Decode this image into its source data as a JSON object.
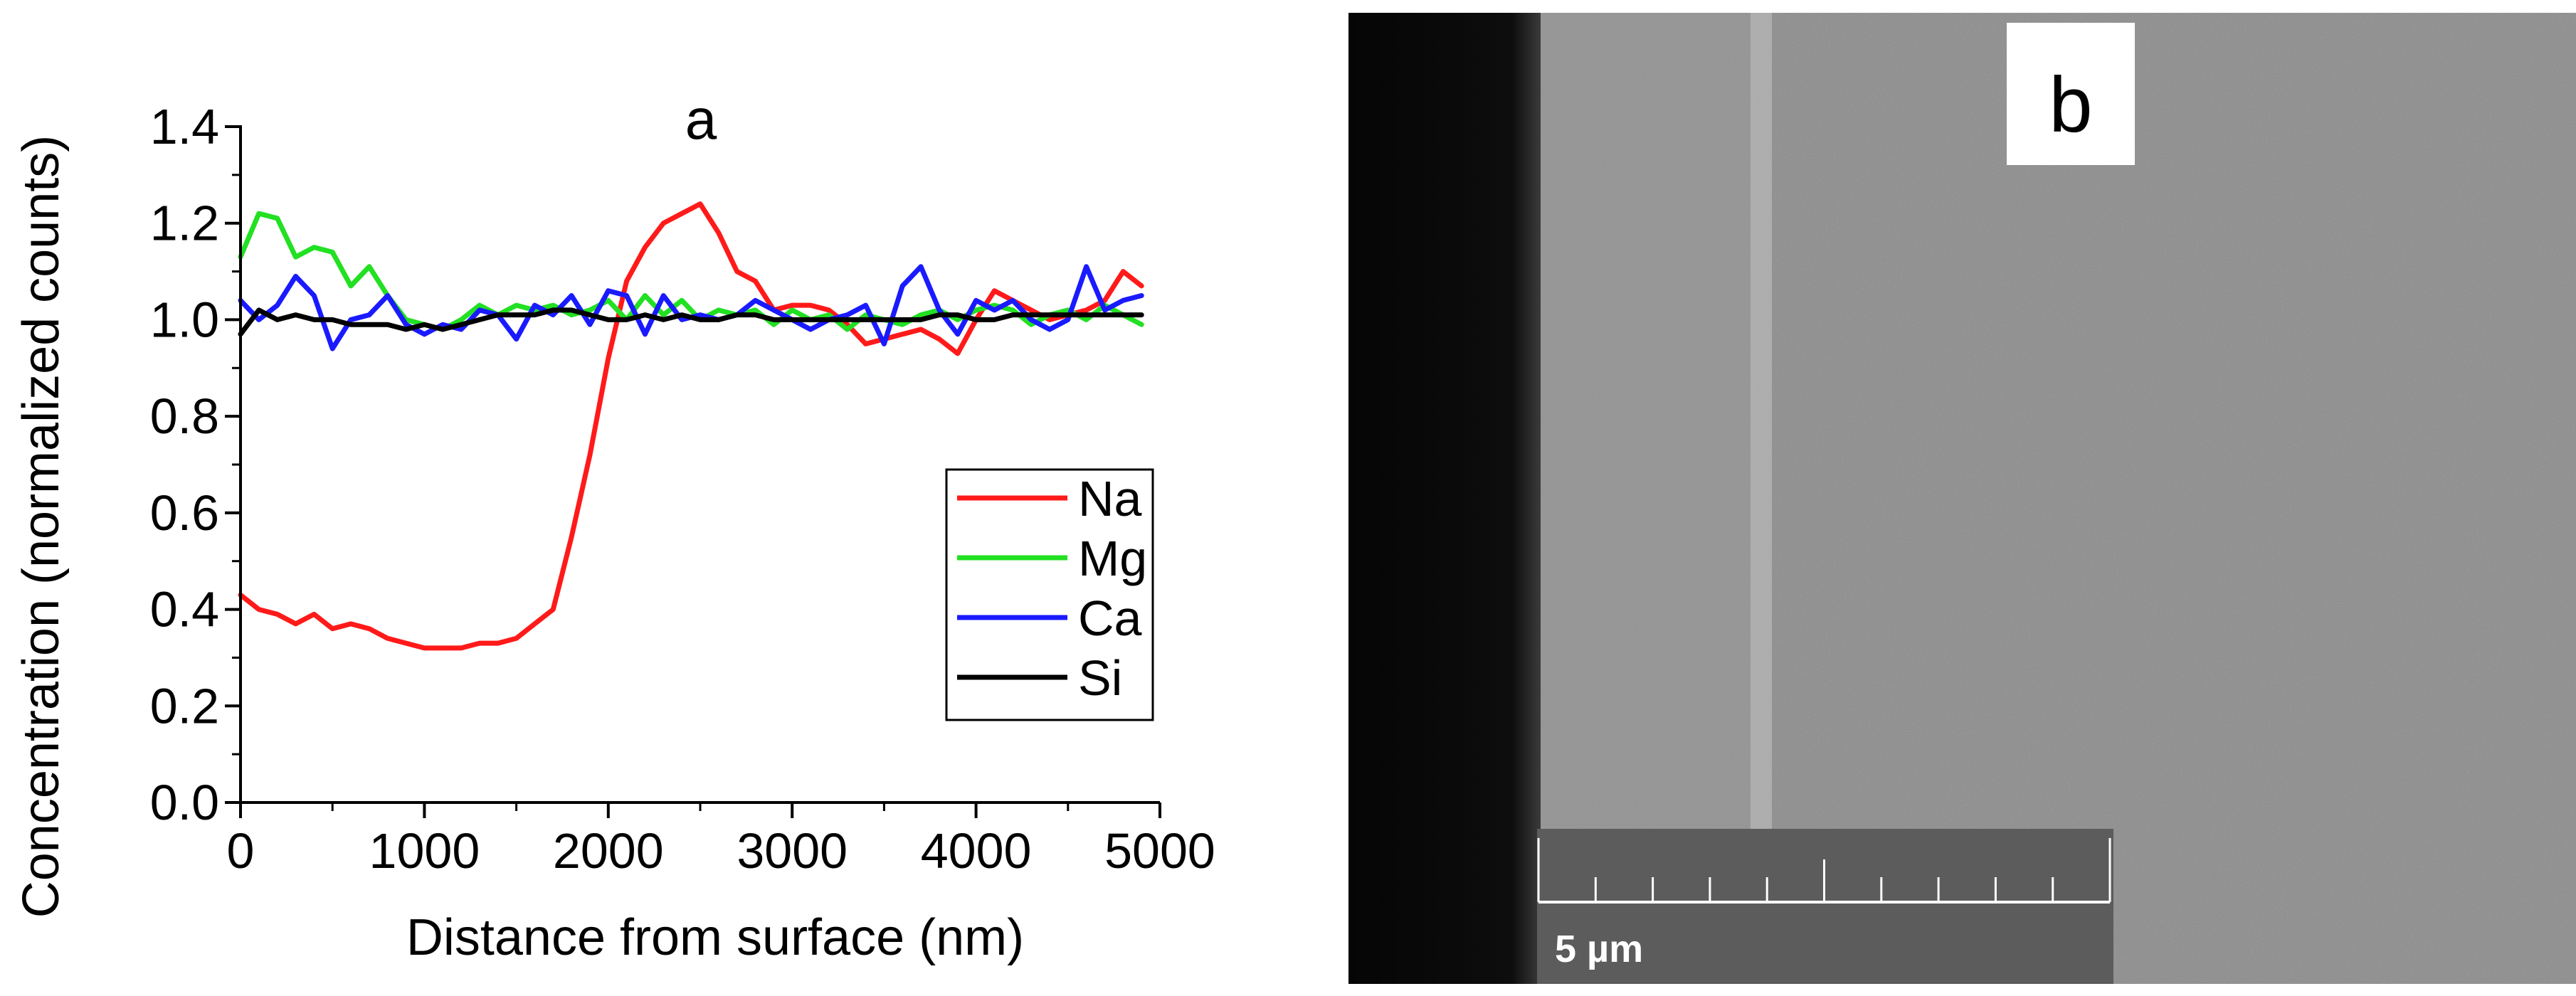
{
  "panel_a": {
    "label": "a"
  },
  "panel_b": {
    "label": "b",
    "scale_bar_text": "5 µm"
  },
  "colors": {
    "Na": "#ff1a1a",
    "Mg": "#22e022",
    "Ca": "#1a1aff",
    "Si": "#000000",
    "axis": "#000000",
    "sem_background": "#8a8a8a",
    "sem_dark_region": "#0a0a0a",
    "scale_bar_box": "#5a5a5a"
  },
  "chart_data": {
    "type": "line",
    "title": "a",
    "xlabel": "Distance from surface (nm)",
    "ylabel": "Concentration (normalized counts)",
    "xlim": [
      0,
      5000
    ],
    "ylim": [
      0,
      1.4
    ],
    "xticks": [
      0,
      1000,
      2000,
      3000,
      4000,
      5000
    ],
    "xtick_labels": [
      "0",
      "1000",
      "2000",
      "3000",
      "4000",
      "5000"
    ],
    "yticks": [
      0.0,
      0.2,
      0.4,
      0.6,
      0.8,
      1.0,
      1.2,
      1.4
    ],
    "ytick_labels": [
      "0.0",
      "0.2",
      "0.4",
      "0.6",
      "0.8",
      "1.0",
      "1.2",
      "1.4"
    ],
    "legend_position": "right-lower",
    "series": [
      {
        "name": "Na",
        "x": [
          0,
          100,
          200,
          300,
          400,
          500,
          600,
          700,
          800,
          900,
          1000,
          1100,
          1200,
          1300,
          1400,
          1500,
          1600,
          1700,
          1800,
          1900,
          2000,
          2100,
          2200,
          2300,
          2400,
          2500,
          2600,
          2700,
          2800,
          2900,
          3000,
          3100,
          3200,
          3300,
          3400,
          3500,
          3600,
          3700,
          3800,
          3900,
          4000,
          4100,
          4200,
          4300,
          4400,
          4500,
          4600,
          4700,
          4800,
          4900
        ],
        "values": [
          0.43,
          0.4,
          0.39,
          0.37,
          0.39,
          0.36,
          0.37,
          0.36,
          0.34,
          0.33,
          0.32,
          0.32,
          0.32,
          0.33,
          0.33,
          0.34,
          0.37,
          0.4,
          0.55,
          0.72,
          0.92,
          1.08,
          1.15,
          1.2,
          1.22,
          1.24,
          1.18,
          1.1,
          1.08,
          1.02,
          1.03,
          1.03,
          1.02,
          0.99,
          0.95,
          0.96,
          0.97,
          0.98,
          0.96,
          0.93,
          1.0,
          1.06,
          1.04,
          1.02,
          1.0,
          1.01,
          1.02,
          1.04,
          1.1,
          1.07
        ]
      },
      {
        "name": "Mg",
        "x": [
          0,
          100,
          200,
          300,
          400,
          500,
          600,
          700,
          800,
          900,
          1000,
          1100,
          1200,
          1300,
          1400,
          1500,
          1600,
          1700,
          1800,
          1900,
          2000,
          2100,
          2200,
          2300,
          2400,
          2500,
          2600,
          2700,
          2800,
          2900,
          3000,
          3100,
          3200,
          3300,
          3400,
          3500,
          3600,
          3700,
          3800,
          3900,
          4000,
          4100,
          4200,
          4300,
          4400,
          4500,
          4600,
          4700,
          4800,
          4900
        ],
        "values": [
          1.13,
          1.22,
          1.21,
          1.13,
          1.15,
          1.14,
          1.07,
          1.11,
          1.05,
          1.0,
          0.99,
          0.98,
          1.0,
          1.03,
          1.01,
          1.03,
          1.02,
          1.03,
          1.01,
          1.02,
          1.04,
          1.0,
          1.05,
          1.01,
          1.04,
          1.0,
          1.02,
          1.01,
          1.02,
          0.99,
          1.02,
          1.0,
          1.01,
          0.98,
          1.01,
          1.0,
          0.99,
          1.01,
          1.02,
          1.0,
          1.02,
          1.03,
          1.02,
          0.99,
          1.01,
          1.02,
          1.0,
          1.03,
          1.01,
          0.99
        ]
      },
      {
        "name": "Ca",
        "x": [
          0,
          100,
          200,
          300,
          400,
          500,
          600,
          700,
          800,
          900,
          1000,
          1100,
          1200,
          1300,
          1400,
          1500,
          1600,
          1700,
          1800,
          1900,
          2000,
          2100,
          2200,
          2300,
          2400,
          2500,
          2600,
          2700,
          2800,
          2900,
          3000,
          3100,
          3200,
          3300,
          3400,
          3500,
          3600,
          3700,
          3800,
          3900,
          4000,
          4100,
          4200,
          4300,
          4400,
          4500,
          4600,
          4700,
          4800,
          4900
        ],
        "values": [
          1.04,
          1.0,
          1.03,
          1.09,
          1.05,
          0.94,
          1.0,
          1.01,
          1.05,
          0.99,
          0.97,
          0.99,
          0.98,
          1.02,
          1.01,
          0.96,
          1.03,
          1.01,
          1.05,
          0.99,
          1.06,
          1.05,
          0.97,
          1.05,
          1.0,
          1.01,
          1.0,
          1.01,
          1.04,
          1.02,
          1.0,
          0.98,
          1.0,
          1.01,
          1.03,
          0.95,
          1.07,
          1.11,
          1.02,
          0.97,
          1.04,
          1.02,
          1.04,
          1.0,
          0.98,
          1.0,
          1.11,
          1.02,
          1.04,
          1.05
        ]
      },
      {
        "name": "Si",
        "x": [
          0,
          100,
          200,
          300,
          400,
          500,
          600,
          700,
          800,
          900,
          1000,
          1100,
          1200,
          1300,
          1400,
          1500,
          1600,
          1700,
          1800,
          1900,
          2000,
          2100,
          2200,
          2300,
          2400,
          2500,
          2600,
          2700,
          2800,
          2900,
          3000,
          3100,
          3200,
          3300,
          3400,
          3500,
          3600,
          3700,
          3800,
          3900,
          4000,
          4100,
          4200,
          4300,
          4400,
          4500,
          4600,
          4700,
          4800,
          4900
        ],
        "values": [
          0.97,
          1.02,
          1.0,
          1.01,
          1.0,
          1.0,
          0.99,
          0.99,
          0.99,
          0.98,
          0.99,
          0.98,
          0.99,
          1.0,
          1.01,
          1.01,
          1.01,
          1.02,
          1.02,
          1.01,
          1.0,
          1.0,
          1.01,
          1.0,
          1.01,
          1.0,
          1.0,
          1.01,
          1.01,
          1.0,
          1.0,
          1.0,
          1.0,
          1.0,
          1.0,
          1.0,
          1.0,
          1.0,
          1.01,
          1.01,
          1.0,
          1.0,
          1.01,
          1.01,
          1.01,
          1.01,
          1.01,
          1.01,
          1.01,
          1.01
        ]
      }
    ]
  }
}
